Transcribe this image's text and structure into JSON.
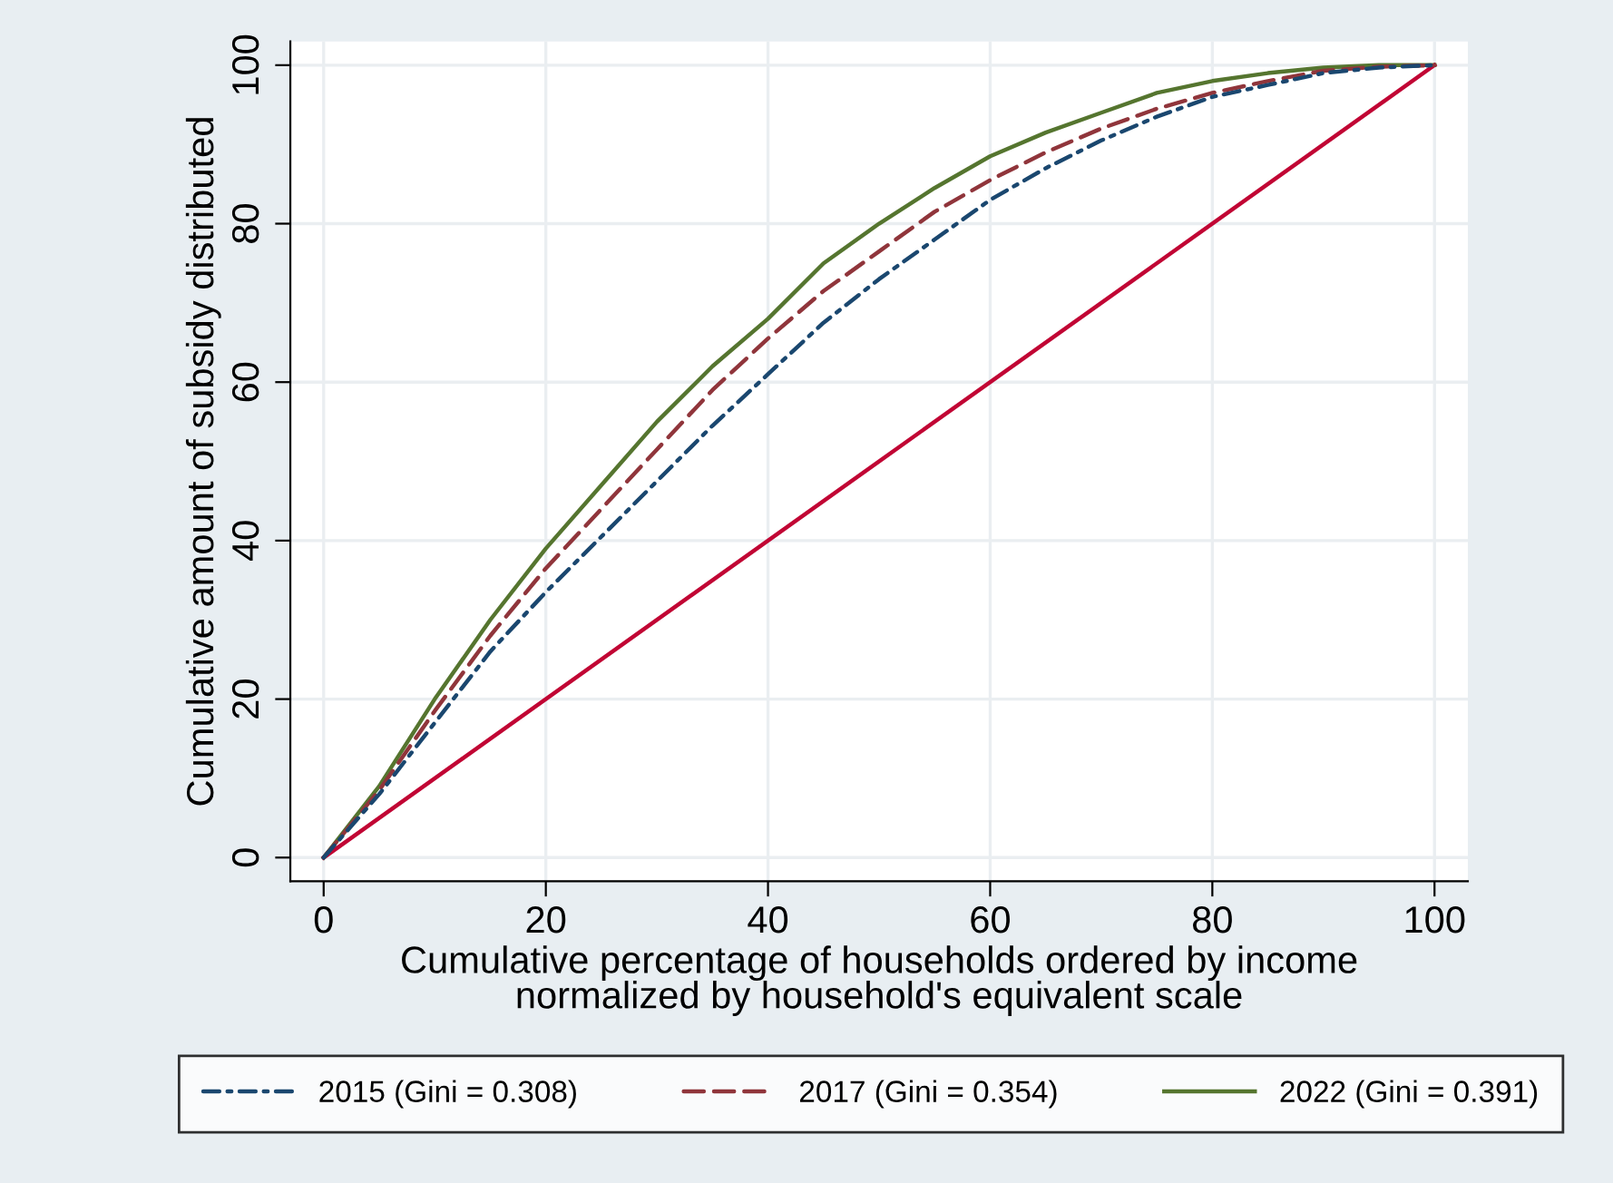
{
  "chart_data": {
    "type": "line",
    "xlabel": "Cumulative percentage of households ordered by income\nnormalized by household's equivalent scale",
    "ylabel": "Cumulative amount of subsidy distributed",
    "x": [
      0,
      5,
      10,
      15,
      20,
      25,
      30,
      35,
      40,
      45,
      50,
      55,
      60,
      65,
      70,
      75,
      80,
      85,
      90,
      95,
      100
    ],
    "series": [
      {
        "name": "2015 (Gini = 0.308)",
        "color": "#1a476f",
        "line_style": "dashdot",
        "values": [
          0,
          8,
          17,
          26,
          33.5,
          40.5,
          47.5,
          54.5,
          61,
          67.5,
          73,
          78,
          83,
          87,
          90.5,
          93.5,
          96,
          97.5,
          99,
          99.7,
          100
        ]
      },
      {
        "name": "2017 (Gini = 0.354)",
        "color": "#90353b",
        "line_style": "dashed",
        "values": [
          0,
          8.5,
          18.5,
          28,
          36.5,
          44,
          51.5,
          59,
          65.5,
          71.5,
          76.5,
          81.5,
          85.5,
          89,
          92,
          94.5,
          96.5,
          98,
          99.3,
          99.8,
          100
        ]
      },
      {
        "name": "2022 (Gini = 0.391)",
        "color": "#55752f",
        "line_style": "solid",
        "values": [
          0,
          9,
          20,
          30,
          39,
          47,
          55,
          62,
          68,
          75,
          80,
          84.5,
          88.5,
          91.5,
          94,
          96.5,
          98,
          99,
          99.7,
          100,
          100
        ]
      },
      {
        "color": "#c10534",
        "line_style": "solid",
        "x": [
          0,
          100
        ],
        "values": [
          0,
          100
        ]
      }
    ],
    "xlim": [
      -3,
      103
    ],
    "ylim": [
      -3,
      103
    ],
    "xticks": [
      0,
      20,
      40,
      60,
      80,
      100
    ],
    "yticks": [
      0,
      20,
      40,
      60,
      80,
      100
    ],
    "grid": true,
    "legend": "bottom"
  }
}
